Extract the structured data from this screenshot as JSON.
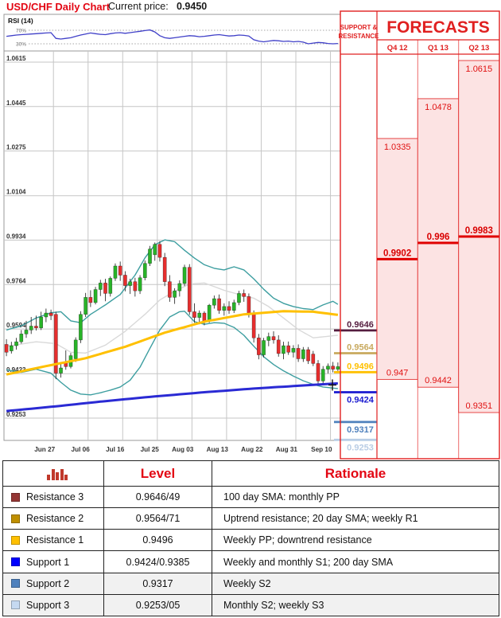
{
  "header": {
    "title": "USD/CHF Daily Chart",
    "price_label": "Current price:",
    "price_value": "0.9450"
  },
  "panel": {
    "snr_header_line1": "SUPPORT &",
    "snr_header_line2": "RESISTANCE",
    "forecasts_title": "FORECASTS",
    "columns": [
      {
        "label": "Q4 12",
        "range_high": 1.0335,
        "range_high_label": "1.0335",
        "range_low": 0.947,
        "range_low_label": "0.947",
        "forecast": 0.9902,
        "forecast_label": "0.9902"
      },
      {
        "label": "Q1 13",
        "range_high": 1.0478,
        "range_high_label": "1.0478",
        "range_low": 0.9442,
        "range_low_label": "0.9442",
        "forecast": 0.996,
        "forecast_label": "0.996"
      },
      {
        "label": "Q2 13",
        "range_high": 1.0615,
        "range_high_label": "1.0615",
        "range_low": 0.9351,
        "range_low_label": "0.9351",
        "forecast": 0.9983,
        "forecast_label": "0.9983"
      }
    ],
    "levels": [
      {
        "name": "resistance-3",
        "value": 0.9646,
        "label": "0.9646",
        "color": "#551d3f",
        "label_side": "above"
      },
      {
        "name": "resistance-2",
        "value": 0.9564,
        "label": "0.9564",
        "color": "#c8a95e",
        "label_side": "above"
      },
      {
        "name": "resistance-1",
        "value": 0.9496,
        "label": "0.9496",
        "color": "#ffc000",
        "label_side": "above"
      },
      {
        "name": "support-1",
        "value": 0.9424,
        "label": "0.9424",
        "color": "#1a1ad0",
        "label_side": "below"
      },
      {
        "name": "support-2",
        "value": 0.9317,
        "label": "0.9317",
        "color": "#4f81bd",
        "label_side": "below"
      },
      {
        "name": "support-3",
        "value": 0.9253,
        "label": "0.9253",
        "color": "#b9cde5",
        "label_side": "below"
      }
    ]
  },
  "chart_data": {
    "type": "candlestick",
    "title": "USD/CHF Daily Chart",
    "current_price": 0.945,
    "ylim": [
      0.9165,
      1.0655
    ],
    "grid": true,
    "rsi": {
      "label": "RSI (14)",
      "upper": 70,
      "upper_label": "70%",
      "lower": 30,
      "lower_label": "30%",
      "values": [
        52,
        54,
        56,
        57,
        58,
        59,
        60,
        61,
        62,
        63,
        46,
        44,
        46,
        48,
        52,
        56,
        59,
        62,
        60,
        58,
        57,
        60,
        62,
        63,
        61,
        63,
        65,
        67,
        69,
        71,
        65,
        54,
        48,
        46,
        48,
        50,
        52,
        54,
        53,
        51,
        52,
        54,
        56,
        57,
        55,
        53,
        54,
        56,
        55,
        53,
        42,
        38,
        36,
        38,
        40,
        39,
        37,
        38,
        36,
        37,
        35,
        30,
        32,
        34,
        33,
        31,
        30,
        31
      ]
    },
    "y_ticks": [
      {
        "v": 1.0615,
        "label": "1.0615"
      },
      {
        "v": 1.0445,
        "label": "1.0445"
      },
      {
        "v": 1.0275,
        "label": "1.0275"
      },
      {
        "v": 1.0104,
        "label": "1.0104"
      },
      {
        "v": 0.9934,
        "label": "0.9934"
      },
      {
        "v": 0.9764,
        "label": "0.9764"
      },
      {
        "v": 0.9594,
        "label": "0.9594"
      },
      {
        "v": 0.9423,
        "label": "0.9423"
      },
      {
        "v": 0.9253,
        "label": "0.9253"
      }
    ],
    "x_ticks": [
      {
        "i": 9,
        "label": "Jun 27"
      },
      {
        "i": 16,
        "label": "Jul 06"
      },
      {
        "i": 23,
        "label": "Jul 16"
      },
      {
        "i": 30,
        "label": "Jul 25"
      },
      {
        "i": 37,
        "label": "Aug 03"
      },
      {
        "i": 44,
        "label": "Aug 13"
      },
      {
        "i": 51,
        "label": "Aug 22"
      },
      {
        "i": 58,
        "label": "Aug 31"
      },
      {
        "i": 65,
        "label": "Sep 10"
      }
    ],
    "candles": [
      [
        0.9535,
        0.9555,
        0.949,
        0.9505
      ],
      [
        0.951,
        0.9545,
        0.95,
        0.953
      ],
      [
        0.953,
        0.956,
        0.9515,
        0.9545
      ],
      [
        0.9545,
        0.959,
        0.9538,
        0.9575
      ],
      [
        0.9575,
        0.9625,
        0.956,
        0.959
      ],
      [
        0.959,
        0.964,
        0.9575,
        0.9605
      ],
      [
        0.9605,
        0.9645,
        0.9588,
        0.9598
      ],
      [
        0.9598,
        0.966,
        0.959,
        0.964
      ],
      [
        0.964,
        0.9672,
        0.962,
        0.9655
      ],
      [
        0.9655,
        0.9668,
        0.9628,
        0.9645
      ],
      [
        0.965,
        0.966,
        0.9402,
        0.9425
      ],
      [
        0.9425,
        0.9468,
        0.9408,
        0.9445
      ],
      [
        0.9468,
        0.9512,
        0.9438,
        0.945
      ],
      [
        0.945,
        0.9502,
        0.9443,
        0.9492
      ],
      [
        0.948,
        0.9562,
        0.9468,
        0.9552
      ],
      [
        0.9552,
        0.9662,
        0.954,
        0.965
      ],
      [
        0.965,
        0.9732,
        0.964,
        0.9715
      ],
      [
        0.9715,
        0.9742,
        0.9678,
        0.9695
      ],
      [
        0.9695,
        0.9755,
        0.9688,
        0.9745
      ],
      [
        0.9745,
        0.9782,
        0.972,
        0.977
      ],
      [
        0.977,
        0.9786,
        0.97,
        0.973
      ],
      [
        0.973,
        0.9795,
        0.9718,
        0.9788
      ],
      [
        0.9788,
        0.9845,
        0.9778,
        0.9835
      ],
      [
        0.9835,
        0.9852,
        0.9778,
        0.98
      ],
      [
        0.98,
        0.9815,
        0.9738,
        0.976
      ],
      [
        0.976,
        0.9786,
        0.9728,
        0.9775
      ],
      [
        0.9775,
        0.979,
        0.9718,
        0.974
      ],
      [
        0.974,
        0.98,
        0.9728,
        0.979
      ],
      [
        0.979,
        0.9856,
        0.978,
        0.9845
      ],
      [
        0.9845,
        0.9912,
        0.9835,
        0.99
      ],
      [
        0.9878,
        0.9925,
        0.9855,
        0.9918
      ],
      [
        0.9918,
        0.993,
        0.9852,
        0.9868
      ],
      [
        0.9868,
        0.9885,
        0.9758,
        0.9775
      ],
      [
        0.9775,
        0.98,
        0.9698,
        0.9715
      ],
      [
        0.9715,
        0.975,
        0.969,
        0.974
      ],
      [
        0.974,
        0.978,
        0.9718,
        0.9768
      ],
      [
        0.9768,
        0.984,
        0.9758,
        0.983
      ],
      [
        0.983,
        0.9842,
        0.9648,
        0.966
      ],
      [
        0.966,
        0.9692,
        0.9618,
        0.9638
      ],
      [
        0.9638,
        0.9665,
        0.9612,
        0.9655
      ],
      [
        0.9655,
        0.9662,
        0.9608,
        0.9625
      ],
      [
        0.9625,
        0.969,
        0.9618,
        0.9685
      ],
      [
        0.9685,
        0.9722,
        0.9672,
        0.971
      ],
      [
        0.971,
        0.9726,
        0.9652,
        0.9665
      ],
      [
        0.9665,
        0.9692,
        0.9645,
        0.968
      ],
      [
        0.968,
        0.97,
        0.9652,
        0.9665
      ],
      [
        0.9665,
        0.9706,
        0.9655,
        0.9695
      ],
      [
        0.9695,
        0.974,
        0.9685,
        0.973
      ],
      [
        0.973,
        0.9745,
        0.9698,
        0.9718
      ],
      [
        0.9718,
        0.973,
        0.9638,
        0.9655
      ],
      [
        0.9655,
        0.9665,
        0.9542,
        0.956
      ],
      [
        0.956,
        0.9575,
        0.9478,
        0.9495
      ],
      [
        0.9495,
        0.956,
        0.9485,
        0.955
      ],
      [
        0.955,
        0.958,
        0.9528,
        0.9565
      ],
      [
        0.9565,
        0.9585,
        0.9538,
        0.9552
      ],
      [
        0.9552,
        0.957,
        0.9488,
        0.95
      ],
      [
        0.95,
        0.9545,
        0.9478,
        0.953
      ],
      [
        0.953,
        0.9546,
        0.9495,
        0.9505
      ],
      [
        0.9505,
        0.9532,
        0.9485,
        0.952
      ],
      [
        0.952,
        0.9535,
        0.9468,
        0.948
      ],
      [
        0.948,
        0.9525,
        0.9468,
        0.9515
      ],
      [
        0.9515,
        0.9525,
        0.946,
        0.9472
      ],
      [
        0.9498,
        0.951,
        0.9452,
        0.9462
      ],
      [
        0.9462,
        0.9475,
        0.9385,
        0.9395
      ],
      [
        0.9395,
        0.9452,
        0.9386,
        0.944
      ],
      [
        0.944,
        0.9462,
        0.9424,
        0.9452
      ],
      [
        0.9452,
        0.9468,
        0.9428,
        0.944
      ],
      [
        0.944,
        0.9466,
        0.9432,
        0.945
      ]
    ],
    "overlays": [
      {
        "name": "sma-20",
        "color": "#d9d9d9",
        "width": 1.4,
        "front": false,
        "points": [
          [
            0,
            0.9528
          ],
          [
            6,
            0.9545
          ],
          [
            10,
            0.9538
          ],
          [
            13,
            0.9505
          ],
          [
            16,
            0.9502
          ],
          [
            20,
            0.9532
          ],
          [
            24,
            0.9585
          ],
          [
            28,
            0.965
          ],
          [
            31,
            0.9705
          ],
          [
            34,
            0.9738
          ],
          [
            37,
            0.9766
          ],
          [
            40,
            0.977
          ],
          [
            44,
            0.9742
          ],
          [
            47,
            0.9726
          ],
          [
            50,
            0.9712
          ],
          [
            53,
            0.968
          ],
          [
            56,
            0.9636
          ],
          [
            59,
            0.9592
          ],
          [
            62,
            0.956
          ],
          [
            67,
            0.957
          ]
        ]
      },
      {
        "name": "bollinger-upper",
        "color": "#3d9ea0",
        "width": 1.4,
        "front": false,
        "points": [
          [
            0,
            0.959
          ],
          [
            3,
            0.9606
          ],
          [
            6,
            0.9636
          ],
          [
            9,
            0.9656
          ],
          [
            11,
            0.966
          ],
          [
            13,
            0.9625
          ],
          [
            15,
            0.9618
          ],
          [
            17,
            0.965
          ],
          [
            20,
            0.9686
          ],
          [
            23,
            0.9726
          ],
          [
            26,
            0.98
          ],
          [
            28,
            0.9866
          ],
          [
            30,
            0.9916
          ],
          [
            32,
            0.9935
          ],
          [
            34,
            0.9928
          ],
          [
            36,
            0.9895
          ],
          [
            38,
            0.9865
          ],
          [
            40,
            0.984
          ],
          [
            42,
            0.9826
          ],
          [
            44,
            0.982
          ],
          [
            46,
            0.9832
          ],
          [
            48,
            0.982
          ],
          [
            50,
            0.9786
          ],
          [
            52,
            0.9746
          ],
          [
            54,
            0.9712
          ],
          [
            56,
            0.9692
          ],
          [
            58,
            0.968
          ],
          [
            60,
            0.9672
          ],
          [
            62,
            0.9668
          ],
          [
            64,
            0.9686
          ],
          [
            66,
            0.97
          ],
          [
            67,
            0.9688
          ]
        ]
      },
      {
        "name": "bollinger-lower",
        "color": "#3d9ea0",
        "width": 1.4,
        "front": false,
        "points": [
          [
            0,
            0.9438
          ],
          [
            3,
            0.9428
          ],
          [
            6,
            0.944
          ],
          [
            9,
            0.9425
          ],
          [
            11,
            0.939
          ],
          [
            13,
            0.936
          ],
          [
            15,
            0.9345
          ],
          [
            17,
            0.9342
          ],
          [
            19,
            0.935
          ],
          [
            21,
            0.936
          ],
          [
            23,
            0.9372
          ],
          [
            25,
            0.9398
          ],
          [
            27,
            0.9448
          ],
          [
            29,
            0.952
          ],
          [
            31,
            0.959
          ],
          [
            33,
            0.964
          ],
          [
            35,
            0.966
          ],
          [
            36,
            0.9662
          ],
          [
            38,
            0.9622
          ],
          [
            40,
            0.9612
          ],
          [
            42,
            0.9618
          ],
          [
            44,
            0.9616
          ],
          [
            46,
            0.96
          ],
          [
            48,
            0.957
          ],
          [
            50,
            0.9528
          ],
          [
            52,
            0.9488
          ],
          [
            54,
            0.9458
          ],
          [
            56,
            0.9434
          ],
          [
            58,
            0.9414
          ],
          [
            60,
            0.9396
          ],
          [
            62,
            0.9382
          ],
          [
            64,
            0.9372
          ],
          [
            66,
            0.9368
          ],
          [
            67,
            0.9366
          ]
        ]
      },
      {
        "name": "sma-100",
        "color": "#ffc000",
        "width": 3,
        "front": true,
        "points": [
          [
            0,
            0.942
          ],
          [
            8,
            0.9452
          ],
          [
            16,
            0.9482
          ],
          [
            24,
            0.9526
          ],
          [
            32,
            0.958
          ],
          [
            40,
            0.9622
          ],
          [
            48,
            0.965
          ],
          [
            56,
            0.9662
          ],
          [
            62,
            0.966
          ],
          [
            67,
            0.9648
          ]
        ]
      },
      {
        "name": "sma-200",
        "color": "#2a2ad4",
        "width": 3,
        "front": true,
        "points": [
          [
            0,
            0.928
          ],
          [
            10,
            0.9298
          ],
          [
            20,
            0.9318
          ],
          [
            30,
            0.9336
          ],
          [
            40,
            0.9352
          ],
          [
            50,
            0.9366
          ],
          [
            60,
            0.9378
          ],
          [
            67,
            0.9386
          ]
        ]
      }
    ],
    "colors": {
      "up": "#28b428",
      "down": "#e62e2e",
      "wick": "#333333",
      "grid": "#c6c6c6",
      "frame": "#999999",
      "rsi_line": "#4040c8",
      "panel_red": "#e02020",
      "panel_pink": "#fce3e3"
    }
  },
  "table": {
    "col_level": "Level",
    "col_rationale": "Rationale",
    "rows": [
      {
        "swatch": "#943634",
        "name": "Resistance 3",
        "level": "0.9646/49",
        "rationale": "100 day SMA: monthly PP",
        "shade": false
      },
      {
        "swatch": "#bf8f00",
        "name": "Resistance 2",
        "level": "0.9564/71",
        "rationale": "Uptrend resistance; 20 day SMA; weekly R1",
        "shade": false
      },
      {
        "swatch": "#ffc000",
        "name": "Resistance 1",
        "level": "0.9496",
        "rationale": "Weekly PP; downtrend resistance",
        "shade": false
      },
      {
        "swatch": "#0000ff",
        "name": "Support 1",
        "level": "0.9424/0.9385",
        "rationale": "Weekly and monthly S1; 200 day SMA",
        "shade": false
      },
      {
        "swatch": "#4f81bd",
        "name": "Support 2",
        "level": "0.9317",
        "rationale": "Weekly S2",
        "shade": true
      },
      {
        "swatch": "#c5d9f1",
        "name": "Support 3",
        "level": "0.9253/05",
        "rationale": "Monthly S2; weekly S3",
        "shade": true
      }
    ]
  }
}
